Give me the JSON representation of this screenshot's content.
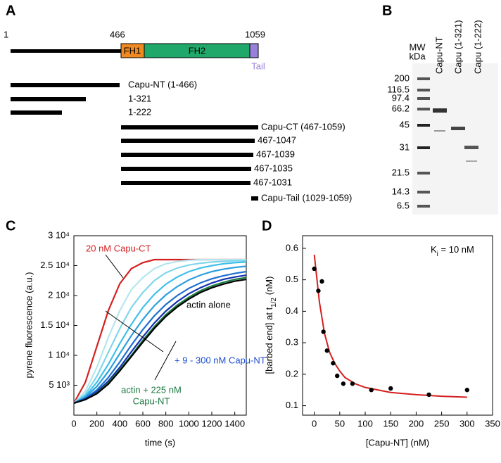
{
  "panel_a": {
    "label": "A",
    "start": "1",
    "fh1_start": "466",
    "end": "1059",
    "fh1": "FH1",
    "fh2": "FH2",
    "tail": "Tail",
    "constructs": [
      "Capu-NT (1-466)",
      "1-321",
      "1-222",
      "Capu-CT (467-1059)",
      "467-1047",
      "467-1039",
      "467-1035",
      "467-1031",
      "Capu-Tail (1029-1059)"
    ]
  },
  "panel_b": {
    "label": "B",
    "mw": "MW",
    "kda": "kDa",
    "lanes": [
      "Capu-NT",
      "Capu (1-321)",
      "Capu (1-222)"
    ],
    "markers": [
      "200",
      "116.5",
      "97.4",
      "66.2",
      "45",
      "31",
      "21.5",
      "14.3",
      "6.5"
    ]
  },
  "chart_data": [
    {
      "type": "line",
      "label": "C",
      "xlabel": "time (s)",
      "ylabel": "pyrene fluorescence (a.u.)",
      "xlim": [
        0,
        1500
      ],
      "ylim": [
        0,
        30000
      ],
      "xticks": [
        0,
        200,
        400,
        600,
        800,
        1000,
        1200,
        1400
      ],
      "yticks": [
        {
          "value": 5000,
          "label": "5 10³"
        },
        {
          "value": 10000,
          "label": "1 10⁴"
        },
        {
          "value": 15000,
          "label": "1.5 10⁴"
        },
        {
          "value": 20000,
          "label": "2 10⁴"
        },
        {
          "value": 25000,
          "label": "2.5 10⁴"
        },
        {
          "value": 30000,
          "label": "3 10⁴"
        }
      ],
      "x": [
        0,
        100,
        200,
        300,
        400,
        500,
        600,
        700,
        800,
        900,
        1000,
        1100,
        1200,
        1300,
        1400,
        1500
      ],
      "series": [
        {
          "color": "#d42020",
          "values": [
            2000,
            5500,
            11500,
            17500,
            22000,
            24500,
            25500,
            26000,
            26000,
            26000,
            26000,
            26000,
            26000,
            26000,
            26000,
            26000
          ]
        },
        {
          "color": "#b5e6ef",
          "values": [
            2000,
            4000,
            8000,
            13000,
            17500,
            21000,
            23000,
            24500,
            25300,
            25700,
            25900,
            26000,
            26000,
            26000,
            26000,
            26000
          ]
        },
        {
          "color": "#80d6ec",
          "values": [
            2000,
            3500,
            6500,
            10500,
            14500,
            18000,
            20500,
            22500,
            23800,
            24600,
            25100,
            25400,
            25600,
            25700,
            25800,
            25800
          ]
        },
        {
          "color": "#3fc0e8",
          "values": [
            2000,
            3200,
            5500,
            8500,
            12000,
            15200,
            18000,
            20200,
            21900,
            23100,
            24000,
            24600,
            25000,
            25300,
            25500,
            25600
          ]
        },
        {
          "color": "#2a9fdf",
          "values": [
            2000,
            3000,
            4800,
            7300,
            10300,
            13300,
            16000,
            18300,
            20100,
            21500,
            22600,
            23400,
            24000,
            24400,
            24700,
            24900
          ]
        },
        {
          "color": "#1f6fd0",
          "values": [
            2000,
            2800,
            4200,
            6300,
            8900,
            11700,
            14300,
            16600,
            18500,
            20000,
            21200,
            22100,
            22800,
            23300,
            23700,
            24000
          ]
        },
        {
          "color": "#1530b0",
          "values": [
            2000,
            2700,
            3900,
            5700,
            8000,
            10600,
            13100,
            15400,
            17400,
            19000,
            20300,
            21300,
            22100,
            22700,
            23100,
            23400
          ]
        },
        {
          "color": "#1a7a40",
          "values": [
            2000,
            2600,
            3700,
            5400,
            7600,
            10000,
            12500,
            14800,
            16800,
            18400,
            19700,
            20800,
            21600,
            22200,
            22700,
            23000
          ]
        },
        {
          "color": "#000000",
          "values": [
            2000,
            2600,
            3600,
            5200,
            7400,
            9800,
            12200,
            14500,
            16500,
            18100,
            19400,
            20500,
            21300,
            21900,
            22400,
            22700
          ]
        }
      ],
      "annotations": [
        "20 nM Capu-CT",
        "actin alone",
        "+ 9 - 300 nM Capu-NT",
        "actin + 225 nM",
        "Capu-NT"
      ]
    },
    {
      "type": "scatter",
      "label": "D",
      "xlabel": "[Capu-NT] (nM)",
      "ylabel": "[barbed end] at t",
      "ylabel_sub": "1/2",
      "ylabel_unit": " (nM)",
      "xlim": [
        -23,
        350
      ],
      "ylim": [
        0.07,
        0.64
      ],
      "xticks": [
        0,
        50,
        100,
        150,
        200,
        250,
        300,
        350
      ],
      "yticks": [
        0.1,
        0.2,
        0.3,
        0.4,
        0.5,
        0.6
      ],
      "x": [
        0,
        8,
        15,
        18,
        25,
        37,
        45,
        57,
        75,
        112,
        150,
        225,
        300
      ],
      "values": [
        0.535,
        0.465,
        0.495,
        0.335,
        0.275,
        0.235,
        0.195,
        0.17,
        0.17,
        0.15,
        0.155,
        0.135,
        0.15
      ],
      "color": "#000000",
      "fit": {
        "color": "#d42020",
        "x": [
          0,
          10,
          20,
          30,
          40,
          50,
          60,
          80,
          100,
          150,
          200,
          250,
          300
        ],
        "values": [
          0.58,
          0.43,
          0.33,
          0.27,
          0.235,
          0.21,
          0.19,
          0.17,
          0.158,
          0.142,
          0.135,
          0.13,
          0.127
        ]
      },
      "annotation": "K",
      "annotation_sub": "i",
      "annotation_rest": " = 10 nM"
    }
  ]
}
